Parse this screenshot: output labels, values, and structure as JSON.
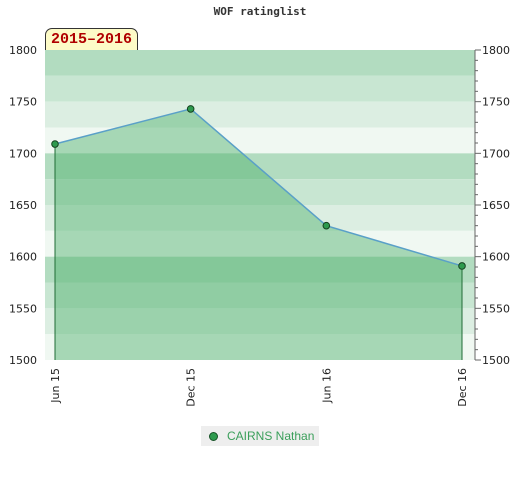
{
  "chart_data": {
    "type": "area",
    "title": "WOF ratinglist",
    "badge": "2015–2016",
    "categories": [
      "Jun 15",
      "Dec 15",
      "Jun 16",
      "Dec 16"
    ],
    "series": [
      {
        "name": "CAIRNS Nathan",
        "values": [
          1709,
          1743,
          1630,
          1591
        ],
        "color": "#2e9a4e"
      }
    ],
    "ylim": [
      1500,
      1800
    ],
    "yticks": [
      1500,
      1550,
      1600,
      1650,
      1700,
      1750,
      1800
    ],
    "ytick_labels": [
      "1500",
      "1550",
      "1600",
      "1650",
      "1700",
      "1750",
      "1800"
    ],
    "xlabel": "",
    "ylabel": "",
    "grid": true,
    "legend_position": "bottom",
    "colors": {
      "line": "#5aa0c8",
      "area": "#4caf6a",
      "band_dark": "#b2dcc0",
      "band_light": "#f0f8f2"
    }
  }
}
